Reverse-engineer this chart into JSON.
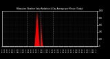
{
  "title": "Milwaukee Weather Solar Radiation & Day Average per Minute (Today)",
  "background_color": "#000000",
  "plot_bg_color": "#000000",
  "bar_color": "#ff0000",
  "vline_color": "#888888",
  "grid_color": "#444444",
  "title_color": "#ffffff",
  "tick_color": "#ffffff",
  "ylim": [
    0,
    1000
  ],
  "vlines": [
    480,
    720,
    960
  ],
  "solar_data": [
    0,
    0,
    0,
    0,
    0,
    0,
    0,
    0,
    0,
    0,
    0,
    0,
    0,
    0,
    0,
    0,
    0,
    0,
    0,
    0,
    0,
    0,
    0,
    0,
    0,
    0,
    0,
    0,
    0,
    0,
    0,
    0,
    0,
    0,
    0,
    0,
    0,
    0,
    0,
    0,
    0,
    0,
    0,
    0,
    0,
    0,
    0,
    0,
    0,
    0,
    0,
    0,
    0,
    0,
    0,
    0,
    0,
    0,
    0,
    0,
    0,
    0,
    0,
    0,
    0,
    0,
    0,
    0,
    0,
    0,
    0,
    0,
    0,
    0,
    0,
    0,
    0,
    0,
    0,
    0,
    0,
    0,
    0,
    0,
    0,
    0,
    0,
    0,
    0,
    0,
    0,
    0,
    0,
    0,
    0,
    0,
    0,
    0,
    0,
    0,
    0,
    0,
    0,
    0,
    0,
    0,
    0,
    0,
    0,
    0,
    0,
    0,
    0,
    0,
    0,
    0,
    0,
    0,
    0,
    0,
    0,
    0,
    0,
    0,
    0,
    0,
    0,
    0,
    0,
    0,
    0,
    0,
    0,
    0,
    0,
    0,
    0,
    0,
    0,
    0,
    0,
    0,
    0,
    0,
    0,
    0,
    0,
    0,
    0,
    0,
    0,
    0,
    0,
    0,
    0,
    0,
    0,
    0,
    0,
    0,
    0,
    0,
    0,
    0,
    0,
    0,
    0,
    0,
    0,
    0,
    0,
    0,
    0,
    0,
    0,
    0,
    0,
    0,
    0,
    0,
    0,
    0,
    0,
    0,
    0,
    0,
    0,
    0,
    0,
    0,
    0,
    0,
    0,
    0,
    0,
    0,
    0,
    0,
    0,
    0,
    0,
    0,
    0,
    0,
    0,
    0,
    0,
    0,
    0,
    0,
    0,
    0,
    0,
    0,
    0,
    0,
    0,
    0,
    0,
    0,
    0,
    0,
    0,
    0,
    0,
    0,
    0,
    0,
    0,
    0,
    0,
    0,
    0,
    0,
    0,
    0,
    0,
    0,
    0,
    0,
    0,
    0,
    0,
    0,
    0,
    0,
    0,
    0,
    0,
    0,
    0,
    0,
    0,
    0,
    0,
    0,
    0,
    0,
    0,
    0,
    0,
    0,
    0,
    0,
    0,
    0,
    0,
    0,
    0,
    0,
    0,
    0,
    0,
    0,
    0,
    0,
    0,
    0,
    0,
    0,
    0,
    0,
    0,
    0,
    0,
    0,
    0,
    0,
    0,
    0,
    0,
    0,
    0,
    0,
    0,
    0,
    0,
    0,
    0,
    0,
    0,
    0,
    0,
    0,
    0,
    0,
    0,
    0,
    0,
    0,
    0,
    0,
    0,
    0,
    0,
    0,
    0,
    0,
    0,
    0,
    0,
    0,
    0,
    0,
    0,
    0,
    0,
    0,
    0,
    0,
    0,
    0,
    0,
    0,
    0,
    0,
    0,
    0,
    0,
    0,
    0,
    0,
    0,
    0,
    0,
    0,
    0,
    0,
    0,
    0,
    0,
    0,
    0,
    0,
    0,
    0,
    0,
    0,
    0,
    0,
    0,
    0,
    0,
    0,
    0,
    0,
    0,
    0,
    0,
    0,
    0,
    0,
    0,
    0,
    0,
    0,
    0,
    0,
    0,
    0,
    0,
    0,
    0,
    0,
    0,
    0,
    0,
    0,
    0,
    0,
    0,
    0,
    0,
    0,
    0,
    0,
    0,
    0,
    0,
    0,
    0,
    0,
    0,
    0,
    0,
    0,
    0,
    0,
    0,
    0,
    0,
    0,
    0,
    0,
    0,
    0,
    0,
    0,
    0,
    0,
    0,
    0,
    0,
    0,
    0,
    0,
    0,
    0,
    0,
    0,
    0,
    0,
    0,
    0,
    0,
    0,
    0,
    0,
    0,
    0,
    0,
    0,
    0,
    0,
    0,
    0,
    0,
    0,
    0,
    0,
    0,
    0,
    0,
    0,
    0,
    0,
    0,
    0,
    0,
    0,
    0,
    0,
    0,
    0,
    0,
    0,
    0,
    0,
    0,
    0,
    0,
    0,
    0,
    0,
    0,
    0,
    0,
    0,
    0,
    0,
    0,
    0,
    0,
    0,
    0,
    0,
    0,
    0,
    0,
    0,
    0,
    0,
    0,
    0,
    0,
    0,
    0,
    0,
    0,
    0,
    0,
    0,
    0,
    0,
    0,
    0,
    0,
    0,
    0,
    0,
    0,
    0,
    0,
    0,
    0,
    0,
    0,
    0,
    0,
    0,
    0,
    0,
    0,
    0,
    0,
    0,
    0,
    0,
    0,
    0,
    0,
    0,
    0,
    0,
    0,
    0,
    0,
    0,
    0,
    0,
    0,
    0,
    0,
    0,
    0,
    0,
    0,
    0,
    0,
    0,
    0,
    0,
    0,
    0,
    0,
    0,
    0,
    0,
    0,
    0,
    0,
    0,
    0,
    0,
    0,
    0,
    0,
    0,
    0,
    0,
    0,
    0,
    0,
    0,
    0,
    0,
    0,
    0,
    0,
    0,
    0,
    0,
    0,
    0,
    0,
    0,
    0,
    0,
    0,
    0,
    0,
    0,
    0,
    0,
    0,
    0,
    0,
    0,
    0,
    0,
    5,
    10,
    15,
    20,
    30,
    45,
    60,
    80,
    100,
    120,
    150,
    180,
    200,
    220,
    240,
    260,
    280,
    300,
    320,
    340,
    360,
    380,
    400,
    420,
    440,
    460,
    480,
    500,
    520,
    540,
    560,
    580,
    600,
    620,
    640,
    660,
    680,
    700,
    720,
    740,
    760,
    780,
    800,
    820,
    840,
    860,
    880,
    900,
    920,
    940,
    960,
    960,
    950,
    940,
    920,
    900,
    880,
    860,
    840,
    820,
    800,
    780,
    760,
    740,
    720,
    700,
    680,
    660,
    640,
    620,
    600,
    580,
    560,
    540,
    520,
    500,
    480,
    460,
    440,
    420,
    400,
    380,
    360,
    340,
    320,
    300,
    280,
    260,
    240,
    220,
    200,
    180,
    160,
    140,
    120,
    100,
    80,
    60,
    40,
    20,
    15,
    12,
    8,
    5,
    3,
    2,
    1,
    0,
    0,
    0,
    0,
    0,
    0,
    0,
    0,
    0,
    0,
    0,
    0,
    0,
    200,
    250,
    400,
    600,
    750,
    850,
    820,
    780,
    700,
    640,
    600,
    560,
    520,
    480,
    440,
    400,
    380,
    360,
    340,
    320,
    300,
    280,
    260,
    240,
    220,
    200,
    180,
    160,
    140,
    130,
    120,
    110,
    100,
    90,
    80,
    70,
    60,
    50,
    45,
    40,
    35,
    30,
    25,
    22,
    20,
    18,
    15,
    12,
    10,
    8,
    5,
    3,
    2,
    1,
    0,
    0,
    0,
    0,
    0,
    0,
    0,
    0,
    0,
    0,
    0,
    0,
    0,
    0,
    0,
    0,
    0,
    0,
    0,
    0,
    0,
    0,
    0,
    0,
    0,
    0,
    0,
    0,
    0,
    0,
    0,
    0,
    0,
    0,
    0,
    0,
    0,
    0,
    0,
    0,
    0,
    0,
    0,
    0,
    0,
    0,
    0,
    0,
    0,
    0,
    0,
    0,
    0,
    0,
    0,
    0,
    0,
    0,
    0,
    0,
    0,
    0,
    0,
    0,
    0,
    0,
    0,
    0,
    0,
    0,
    0,
    0,
    0,
    0,
    0,
    0,
    0,
    0,
    0,
    0,
    0,
    0,
    0,
    0,
    0,
    0,
    0,
    0,
    0,
    0,
    0,
    0,
    0,
    0,
    0,
    0,
    0,
    0,
    0,
    0,
    0,
    0,
    0,
    0,
    0,
    0,
    0,
    0,
    0,
    0,
    0,
    0,
    0,
    0,
    0,
    0,
    0,
    0,
    0,
    0,
    0,
    0,
    0,
    0,
    0,
    0,
    0,
    0,
    0,
    0,
    0,
    0,
    0,
    0,
    0,
    0,
    0,
    0,
    0,
    0,
    0,
    0,
    0,
    0,
    0,
    0,
    0,
    0,
    0,
    0,
    0,
    0,
    0,
    0,
    0,
    0,
    0,
    0,
    0,
    0,
    0,
    0,
    0,
    0,
    0,
    0,
    0,
    0,
    0,
    0,
    0,
    0,
    0,
    0,
    0,
    0,
    0,
    0,
    0,
    0,
    0,
    0,
    0,
    0,
    0,
    0,
    0,
    0,
    0,
    0,
    0,
    0,
    0,
    0,
    0,
    0,
    0,
    0,
    0,
    0,
    0,
    0,
    0,
    0,
    0,
    0,
    0,
    0,
    0,
    0,
    0,
    0,
    0,
    0,
    0,
    0,
    0,
    0,
    0,
    0,
    0,
    0,
    0,
    0,
    0,
    0,
    0,
    0,
    0,
    0,
    0,
    0,
    0,
    0,
    0,
    0,
    0,
    0,
    0,
    0,
    0,
    0,
    0,
    0,
    0,
    0,
    0,
    0,
    0,
    0,
    0,
    0,
    0,
    0,
    0,
    0,
    0,
    0,
    0,
    0,
    0,
    0,
    0,
    0,
    0,
    0,
    0,
    0,
    0,
    0,
    0,
    0,
    0,
    0,
    0,
    0,
    0,
    0,
    0,
    0,
    0,
    0,
    0,
    0,
    0,
    0,
    0,
    0,
    0,
    0,
    0,
    0,
    0,
    0,
    0,
    0,
    0,
    0,
    0,
    0,
    0,
    0,
    0,
    0,
    0,
    0,
    0,
    0,
    0,
    0,
    0,
    0,
    0,
    0,
    0,
    0,
    0,
    0,
    0,
    0,
    0,
    0,
    0,
    0,
    0,
    0,
    0,
    0,
    0,
    0,
    0,
    0,
    0,
    0,
    0,
    0,
    0,
    0,
    0,
    0,
    0,
    0,
    0,
    0,
    0,
    0,
    0,
    0,
    0,
    0,
    0,
    0,
    0,
    0,
    0,
    0,
    0,
    0,
    0,
    0,
    0,
    0,
    0,
    0,
    0,
    0,
    0,
    0,
    0,
    0,
    0,
    0,
    0,
    0,
    0,
    0,
    0,
    0,
    0,
    0,
    0,
    0,
    0,
    0,
    0,
    0,
    0,
    0,
    0,
    0,
    0,
    0,
    0,
    0,
    0,
    0,
    0,
    0,
    0,
    0,
    0,
    0,
    0,
    0,
    0,
    0,
    0,
    0,
    0,
    0,
    0,
    0,
    0,
    0,
    0,
    0,
    0,
    0,
    0,
    0,
    0,
    0,
    0,
    0,
    0,
    0,
    0,
    0,
    0,
    0,
    0,
    0,
    0,
    0,
    0,
    0,
    0,
    0,
    0,
    0,
    0,
    0,
    0,
    0,
    0,
    0,
    0,
    0,
    0,
    0,
    0,
    0,
    0,
    0,
    0,
    0,
    0,
    0,
    0,
    0,
    0,
    0,
    0,
    0,
    0,
    0,
    0,
    0,
    0,
    0,
    0,
    0,
    0,
    0,
    0,
    0,
    0,
    0,
    0,
    0,
    0,
    0,
    0,
    0,
    0,
    0,
    0,
    0,
    0,
    0,
    0,
    0,
    0,
    0,
    0,
    0,
    0,
    0,
    0,
    0,
    0,
    0,
    0,
    0,
    0,
    0,
    0,
    0,
    0,
    0,
    0,
    0,
    0,
    0,
    0,
    0,
    0,
    0,
    0,
    0,
    0,
    0,
    0,
    0,
    0,
    0,
    0,
    0,
    0,
    0,
    0,
    0,
    0,
    0,
    0,
    0,
    0,
    0,
    0,
    0,
    0,
    0,
    0,
    0,
    0,
    0,
    0,
    0,
    0,
    0,
    0,
    0,
    0,
    0,
    0,
    0,
    0,
    0,
    0,
    0,
    0,
    0,
    0,
    0,
    0,
    0,
    0,
    0,
    0,
    0,
    0,
    0,
    0,
    0,
    0,
    0,
    0,
    0,
    0,
    0,
    0,
    0,
    0,
    0,
    0,
    0,
    0,
    0,
    0,
    0,
    0,
    0,
    0,
    0,
    0,
    0,
    0,
    0,
    0,
    0,
    0,
    0,
    0,
    0,
    0,
    0,
    0,
    0,
    0,
    0,
    0,
    0,
    0,
    0,
    0,
    0,
    0,
    0,
    0,
    0,
    0,
    0,
    0,
    0,
    0,
    0,
    0,
    0,
    0,
    0,
    0,
    0,
    0,
    0,
    0,
    0,
    0,
    0,
    0,
    0,
    0,
    0,
    0,
    0,
    0,
    0,
    0,
    0,
    0,
    0,
    0,
    0,
    0,
    0,
    0,
    0,
    0,
    0,
    0,
    0,
    0,
    0,
    0,
    0,
    0,
    0,
    0,
    0,
    0,
    0,
    0,
    0,
    0,
    0,
    0,
    0,
    0,
    0,
    0,
    0,
    0,
    0,
    0,
    0,
    0,
    0,
    0,
    0,
    0,
    0,
    0,
    0,
    0,
    0,
    0,
    0,
    0,
    0,
    0,
    0,
    0,
    0,
    0,
    0,
    0,
    0,
    0,
    0,
    0,
    0,
    0,
    0,
    0,
    0,
    0,
    0,
    0,
    0,
    0,
    0,
    0,
    0,
    0,
    0,
    0,
    0,
    0,
    0,
    0,
    0,
    0,
    0,
    0,
    0,
    0,
    0,
    0,
    0,
    0,
    0,
    0,
    0,
    0,
    0,
    0,
    0,
    0,
    0,
    0,
    0,
    0,
    0,
    0,
    0,
    0,
    0,
    0,
    0,
    0,
    0,
    0,
    0,
    0,
    0,
    0,
    0,
    0,
    0,
    0,
    0,
    0,
    0,
    0,
    0,
    0,
    0,
    0,
    0,
    0,
    0,
    0,
    0,
    0,
    0,
    0,
    0,
    0,
    0,
    0,
    0,
    0,
    0,
    0,
    0,
    0,
    0,
    0,
    0,
    0,
    0,
    0,
    0,
    0,
    0,
    0,
    0,
    0,
    0,
    0,
    0,
    0,
    0,
    0,
    0,
    0,
    0,
    0,
    0,
    0,
    0,
    0,
    0,
    0,
    0,
    0,
    0,
    0,
    0,
    0,
    0,
    0,
    0,
    0,
    0,
    0,
    0,
    0,
    0,
    0,
    0,
    0,
    0,
    0,
    0,
    0,
    0,
    0,
    0,
    0,
    0,
    0,
    0,
    0,
    0,
    0,
    0,
    0,
    0,
    0,
    0,
    0,
    0,
    0,
    0,
    0,
    0,
    0,
    0,
    0,
    0,
    0,
    0,
    0,
    0,
    0,
    0,
    0,
    0,
    0,
    0,
    0,
    0,
    0,
    0,
    0,
    0,
    0,
    0,
    0,
    0,
    0,
    0,
    0,
    0,
    0,
    0,
    0,
    0,
    0,
    0,
    0,
    0,
    0,
    0,
    0,
    0,
    0,
    0,
    0,
    0,
    0,
    0,
    0,
    0,
    0,
    0,
    0,
    0,
    0,
    0,
    0,
    0,
    0,
    0,
    0,
    0,
    0,
    0,
    0,
    0,
    0,
    0,
    0,
    0,
    0,
    0,
    0,
    0,
    0,
    0,
    0,
    0,
    0,
    0,
    0,
    0,
    0,
    0,
    0,
    0,
    0,
    0,
    0,
    0,
    0,
    0,
    0,
    0,
    0,
    0,
    0,
    0,
    0,
    0,
    0,
    0,
    0,
    0,
    0,
    0,
    0,
    0,
    0,
    0,
    0,
    0,
    0,
    0,
    0,
    0,
    0,
    0,
    0,
    0,
    0,
    0,
    0,
    0,
    0,
    0,
    0,
    0,
    0,
    0,
    0,
    0,
    0,
    0,
    0,
    0,
    0,
    0,
    0,
    0,
    0,
    0
  ]
}
